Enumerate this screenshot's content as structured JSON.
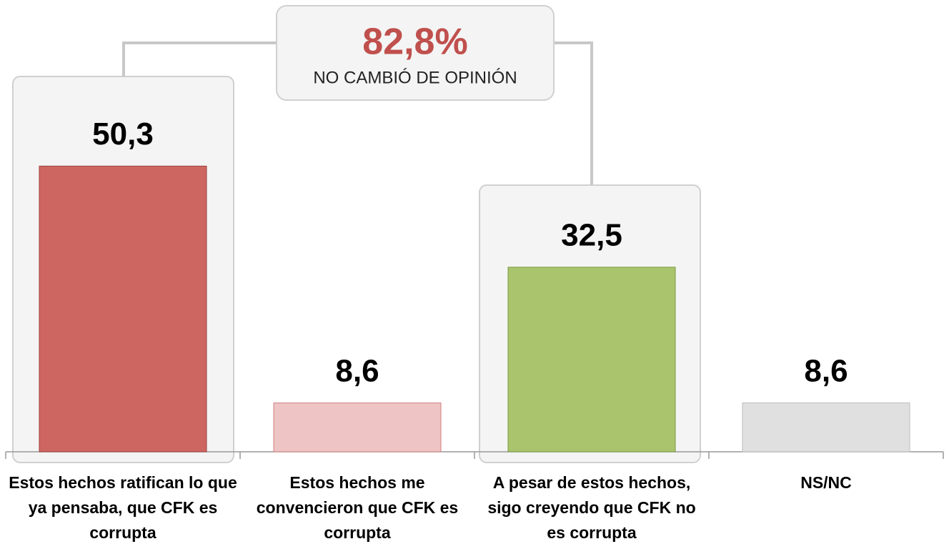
{
  "chart_data": {
    "type": "bar",
    "categories": [
      "Estos hechos ratifican lo que ya pensaba, que CFK es corrupta",
      "Estos hechos me convencieron que CFK es corrupta",
      "A pesar de estos hechos, sigo creyendo que CFK no es corrupta",
      "NS/NC"
    ],
    "values": [
      50.3,
      8.6,
      32.5,
      8.6
    ],
    "value_labels": [
      "50,3",
      "8,6",
      "32,5",
      "8,6"
    ],
    "colors": [
      "#cd6660",
      "#eec4c4",
      "#a9c46c",
      "#e0e0e0"
    ],
    "ylim": [
      0,
      55
    ],
    "annotation": {
      "value_label": "82,8%",
      "text": "NO CAMBIÓ DE OPINIÓN"
    }
  }
}
